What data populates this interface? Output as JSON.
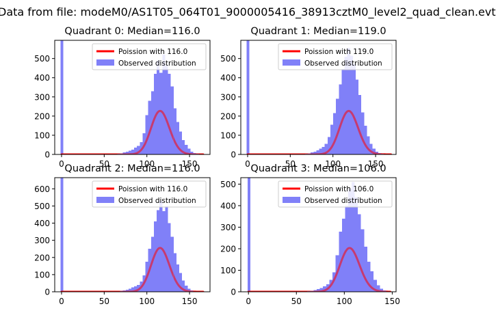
{
  "figure": {
    "suptitle": "Data from file: modeM0/AS1T05_064T01_9000005416_38913cztM0_level2_quad_clean.evt"
  },
  "colors": {
    "poisson_line": "#ff0000",
    "histogram_fill": "#8080f8",
    "axis": "#000000",
    "legend_border": "#cccccc"
  },
  "chart_data": [
    {
      "type": "bar",
      "title": "Quadrant 0: Median=116.0",
      "median": 116.0,
      "xlabel": "",
      "ylabel": "",
      "xlim": [
        -8,
        174
      ],
      "ylim": [
        0,
        595
      ],
      "xticks": [
        0,
        50,
        100,
        150
      ],
      "yticks": [
        0,
        100,
        200,
        300,
        400,
        500
      ],
      "grid": false,
      "legend_position": "upper right",
      "legend": [
        "Poission with 116.0",
        "Observed distribution"
      ],
      "histogram": {
        "name": "Observed distribution",
        "bin_width": 3.3,
        "bins": [
          [
            -1,
            2,
            595
          ],
          [
            62,
            65.3,
            2
          ],
          [
            65.3,
            68.6,
            3
          ],
          [
            68.6,
            71.9,
            5
          ],
          [
            71.9,
            75.2,
            10
          ],
          [
            75.2,
            78.5,
            15
          ],
          [
            78.5,
            81.8,
            20
          ],
          [
            81.8,
            85.1,
            25
          ],
          [
            85.1,
            88.4,
            35
          ],
          [
            88.4,
            91.7,
            45
          ],
          [
            91.7,
            95,
            65
          ],
          [
            95,
            98.3,
            110
          ],
          [
            98.3,
            101.6,
            205
          ],
          [
            101.6,
            104.9,
            280
          ],
          [
            104.9,
            108.2,
            330
          ],
          [
            108.2,
            111.5,
            420
          ],
          [
            111.5,
            114.8,
            490
          ],
          [
            114.8,
            118.1,
            425
          ],
          [
            118.1,
            121.4,
            520
          ],
          [
            121.4,
            124.7,
            465
          ],
          [
            124.7,
            128,
            420
          ],
          [
            128,
            131.3,
            355
          ],
          [
            131.3,
            134.6,
            240
          ],
          [
            134.6,
            137.9,
            170
          ],
          [
            137.9,
            141.2,
            120
          ],
          [
            141.2,
            144.5,
            75
          ],
          [
            144.5,
            147.8,
            50
          ],
          [
            147.8,
            151.1,
            30
          ],
          [
            151.1,
            154.4,
            15
          ],
          [
            154.4,
            157.7,
            8
          ],
          [
            157.7,
            161,
            3
          ]
        ]
      },
      "poisson": {
        "name": "Poission with 116.0",
        "lambda": 116.0,
        "scale": 6130,
        "x_range": [
          0,
          166
        ]
      }
    },
    {
      "type": "bar",
      "title": "Quadrant 1: Median=119.0",
      "median": 119.0,
      "xlabel": "",
      "ylabel": "",
      "xlim": [
        -8,
        174
      ],
      "ylim": [
        0,
        595
      ],
      "xticks": [
        0,
        50,
        100,
        150
      ],
      "yticks": [
        0,
        100,
        200,
        300,
        400,
        500
      ],
      "grid": false,
      "legend_position": "upper right",
      "legend": [
        "Poission with 119.0",
        "Observed distribution"
      ],
      "histogram": {
        "name": "Observed distribution",
        "bin_width": 3.3,
        "bins": [
          [
            -1,
            2,
            595
          ],
          [
            64,
            67.3,
            2
          ],
          [
            67.3,
            70.6,
            3
          ],
          [
            70.6,
            73.9,
            6
          ],
          [
            73.9,
            77.2,
            10
          ],
          [
            77.2,
            80.5,
            15
          ],
          [
            80.5,
            83.8,
            22
          ],
          [
            83.8,
            87.1,
            30
          ],
          [
            87.1,
            90.4,
            40
          ],
          [
            90.4,
            93.7,
            55
          ],
          [
            93.7,
            97,
            90
          ],
          [
            97,
            100.3,
            155
          ],
          [
            100.3,
            103.6,
            215
          ],
          [
            103.6,
            106.9,
            290
          ],
          [
            106.9,
            110.2,
            365
          ],
          [
            110.2,
            113.5,
            445
          ],
          [
            113.5,
            116.8,
            510
          ],
          [
            116.8,
            120.1,
            555
          ],
          [
            120.1,
            123.4,
            515
          ],
          [
            123.4,
            126.7,
            470
          ],
          [
            126.7,
            130,
            390
          ],
          [
            130,
            133.3,
            310
          ],
          [
            133.3,
            136.6,
            220
          ],
          [
            136.6,
            139.9,
            150
          ],
          [
            139.9,
            143.2,
            95
          ],
          [
            143.2,
            146.5,
            55
          ],
          [
            146.5,
            149.8,
            30
          ],
          [
            149.8,
            153.1,
            15
          ],
          [
            153.1,
            156.4,
            8
          ],
          [
            156.4,
            159.7,
            3
          ]
        ]
      },
      "poisson": {
        "name": "Poission with 119.0",
        "lambda": 119.0,
        "scale": 6200,
        "x_range": [
          0,
          168
        ]
      }
    },
    {
      "type": "bar",
      "title": "Quadrant 2: Median=116.0",
      "median": 116.0,
      "xlabel": "",
      "ylabel": "",
      "xlim": [
        -8,
        174
      ],
      "ylim": [
        0,
        665
      ],
      "xticks": [
        0,
        50,
        100,
        150
      ],
      "yticks": [
        0,
        100,
        200,
        300,
        400,
        500,
        600
      ],
      "grid": false,
      "legend_position": "upper right",
      "legend": [
        "Poission with 116.0",
        "Observed distribution"
      ],
      "histogram": {
        "name": "Observed distribution",
        "bin_width": 3.3,
        "bins": [
          [
            -1,
            2,
            665
          ],
          [
            62,
            65.3,
            2
          ],
          [
            65.3,
            68.6,
            3
          ],
          [
            68.6,
            71.9,
            5
          ],
          [
            71.9,
            75.2,
            8
          ],
          [
            75.2,
            78.5,
            12
          ],
          [
            78.5,
            81.8,
            18
          ],
          [
            81.8,
            85.1,
            25
          ],
          [
            85.1,
            88.4,
            32
          ],
          [
            88.4,
            91.7,
            40
          ],
          [
            91.7,
            95,
            60
          ],
          [
            95,
            98.3,
            95
          ],
          [
            98.3,
            101.6,
            175
          ],
          [
            101.6,
            104.9,
            250
          ],
          [
            104.9,
            108.2,
            320
          ],
          [
            108.2,
            111.5,
            410
          ],
          [
            111.5,
            114.8,
            475
          ],
          [
            114.8,
            118.1,
            530
          ],
          [
            118.1,
            121.4,
            470
          ],
          [
            121.4,
            124.7,
            500
          ],
          [
            124.7,
            128,
            400
          ],
          [
            128,
            131.3,
            320
          ],
          [
            131.3,
            134.6,
            225
          ],
          [
            134.6,
            137.9,
            160
          ],
          [
            137.9,
            141.2,
            110
          ],
          [
            141.2,
            144.5,
            65
          ],
          [
            144.5,
            147.8,
            35
          ],
          [
            147.8,
            151.1,
            18
          ],
          [
            151.1,
            154.4,
            8
          ],
          [
            154.4,
            157.7,
            3
          ]
        ]
      },
      "poisson": {
        "name": "Poission with 116.0",
        "lambda": 116.0,
        "scale": 6900,
        "x_range": [
          0,
          166
        ]
      }
    },
    {
      "type": "bar",
      "title": "Quadrant 3: Median=106.0",
      "median": 106.0,
      "xlabel": "",
      "ylabel": "",
      "xlim": [
        -8,
        154
      ],
      "ylim": [
        0,
        530
      ],
      "xticks": [
        0,
        50,
        100,
        150
      ],
      "yticks": [
        0,
        100,
        200,
        300,
        400,
        500
      ],
      "grid": false,
      "legend_position": "upper right",
      "legend": [
        "Poission with 106.0",
        "Observed distribution"
      ],
      "histogram": {
        "name": "Observed distribution",
        "bin_width": 3.3,
        "bins": [
          [
            -1,
            2,
            530
          ],
          [
            58,
            61.3,
            2
          ],
          [
            61.3,
            64.6,
            3
          ],
          [
            64.6,
            67.9,
            5
          ],
          [
            67.9,
            71.2,
            8
          ],
          [
            71.2,
            74.5,
            12
          ],
          [
            74.5,
            77.8,
            18
          ],
          [
            77.8,
            81.1,
            25
          ],
          [
            81.1,
            84.4,
            35
          ],
          [
            84.4,
            87.7,
            55
          ],
          [
            87.7,
            91,
            90
          ],
          [
            91,
            94.3,
            170
          ],
          [
            94.3,
            97.6,
            280
          ],
          [
            97.6,
            100.9,
            340
          ],
          [
            100.9,
            104.2,
            400
          ],
          [
            104.2,
            107.5,
            480
          ],
          [
            107.5,
            110.8,
            510
          ],
          [
            110.8,
            114.1,
            440
          ],
          [
            114.1,
            117.4,
            360
          ],
          [
            117.4,
            120.7,
            290
          ],
          [
            120.7,
            124,
            210
          ],
          [
            124,
            127.3,
            140
          ],
          [
            127.3,
            130.6,
            95
          ],
          [
            130.6,
            133.9,
            55
          ],
          [
            133.9,
            137.2,
            30
          ],
          [
            137.2,
            140.5,
            15
          ],
          [
            140.5,
            143.8,
            6
          ],
          [
            143.8,
            147.1,
            2
          ]
        ]
      },
      "poisson": {
        "name": "Poission with 106.0",
        "lambda": 106.0,
        "scale": 5250,
        "x_range": [
          0,
          148
        ]
      }
    }
  ]
}
